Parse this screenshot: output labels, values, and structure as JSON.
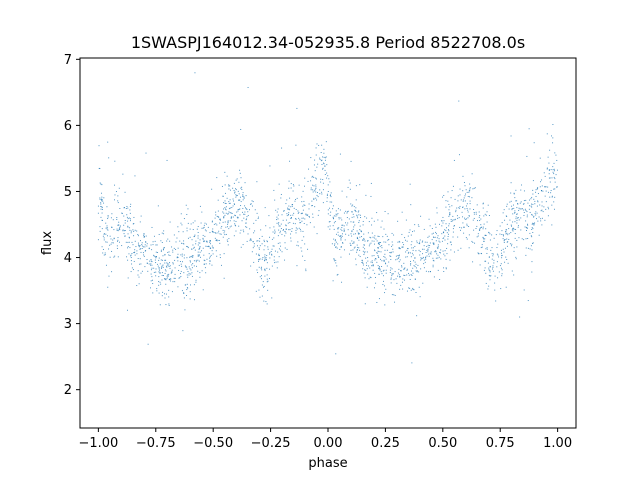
{
  "chart_data": {
    "type": "scatter",
    "title": "1SWASPJ164012.34-052935.8 Period 8522708.0s",
    "xlabel": "phase",
    "ylabel": "flux",
    "xlim": [
      -1.08,
      1.08
    ],
    "ylim": [
      1.42,
      7.02
    ],
    "xticks": [
      -1.0,
      -0.75,
      -0.5,
      -0.25,
      0.0,
      0.25,
      0.5,
      0.75,
      1.0
    ],
    "xtick_labels": [
      "−1.00",
      "−0.75",
      "−0.50",
      "−0.25",
      "0.00",
      "0.25",
      "0.50",
      "0.75",
      "1.00"
    ],
    "yticks": [
      2,
      3,
      4,
      5,
      6,
      7
    ],
    "ytick_labels": [
      "2",
      "3",
      "4",
      "5",
      "6",
      "7"
    ],
    "grid": false,
    "point_color": "#1f77b4",
    "series": [
      {
        "phase": [
          -1.0,
          -0.97,
          -0.95,
          -0.92,
          -0.9,
          -0.87,
          -0.85,
          -0.82,
          -0.8,
          -0.77,
          -0.75,
          -0.72,
          -0.7,
          -0.67,
          -0.65,
          -0.62,
          -0.6,
          -0.57,
          -0.55,
          -0.52,
          -0.5,
          -0.47,
          -0.45,
          -0.42,
          -0.4,
          -0.37,
          -0.35,
          -0.32,
          -0.3,
          -0.27,
          -0.25,
          -0.22,
          -0.2,
          -0.17,
          -0.15,
          -0.12,
          -0.1,
          -0.07,
          -0.05,
          -0.02,
          0.0
        ],
        "flux": [
          5.0,
          4.35,
          4.3,
          4.55,
          4.65,
          4.4,
          4.2,
          4.0,
          4.1,
          3.95,
          3.9,
          3.95,
          3.85,
          3.9,
          3.95,
          3.9,
          3.95,
          4.05,
          4.1,
          4.2,
          4.3,
          4.45,
          4.6,
          4.75,
          4.8,
          4.7,
          4.6,
          4.35,
          4.0,
          3.9,
          4.1,
          4.4,
          4.5,
          4.6,
          4.7,
          4.55,
          4.65,
          4.9,
          5.1,
          5.3,
          5.2
        ]
      }
    ]
  }
}
